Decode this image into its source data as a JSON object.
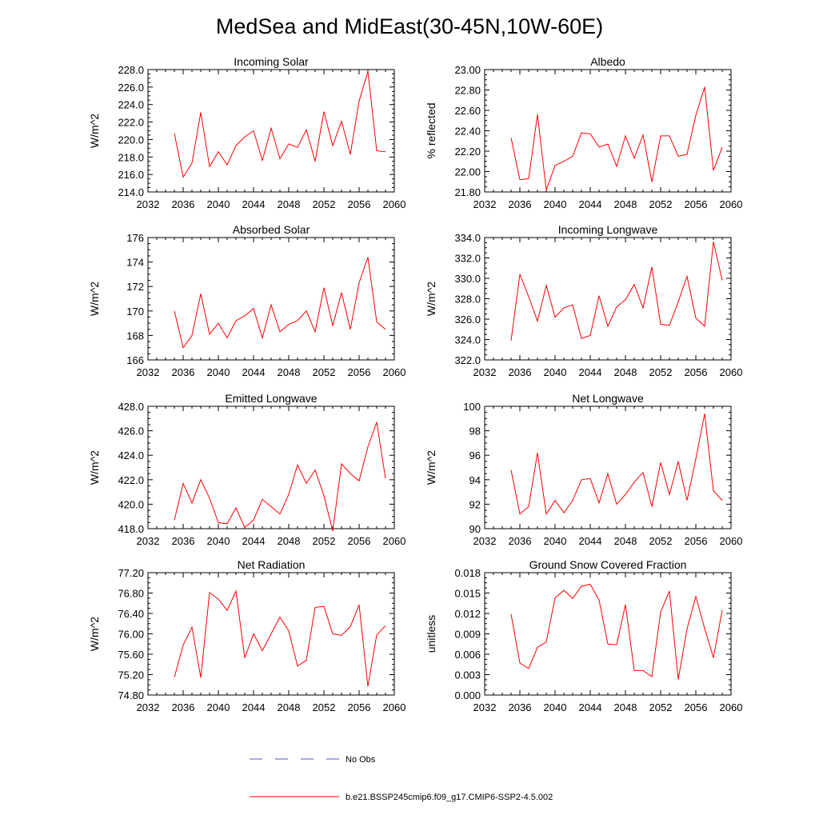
{
  "figure": {
    "title": "MedSea and MidEast(30-45N,10W-60E)",
    "series_color": "#ff0000",
    "obs_color": "#5555cc"
  },
  "legend": {
    "obs_label": "No Obs",
    "model_label": "b.e21.BSSP245cmip6.f09_g17.CMIP6-SSP2-4.5.002"
  },
  "chart_data": [
    {
      "type": "line",
      "title": "Incoming Solar",
      "xlabel": "",
      "ylabel": "W/m^2",
      "xlim": [
        2032,
        2060
      ],
      "ylim": [
        214,
        228
      ],
      "xticks": [
        2032,
        2036,
        2040,
        2044,
        2048,
        2052,
        2056,
        2060
      ],
      "yticks": [
        "214.0",
        "216.0",
        "218.0",
        "220.0",
        "222.0",
        "224.0",
        "226.0",
        "228.0"
      ],
      "x": [
        2035,
        2036,
        2037,
        2038,
        2039,
        2040,
        2041,
        2042,
        2043,
        2044,
        2045,
        2046,
        2047,
        2048,
        2049,
        2050,
        2051,
        2052,
        2053,
        2054,
        2055,
        2056,
        2057,
        2058,
        2059
      ],
      "series": [
        {
          "name": "b.e21.BSSP245cmip6.f09_g17.CMIP6-SSP2-4.5.002",
          "values": [
            220.7,
            215.7,
            217.3,
            223.1,
            216.9,
            218.6,
            217.1,
            219.3,
            220.3,
            221.0,
            217.6,
            221.3,
            217.8,
            219.5,
            219.1,
            221.1,
            217.5,
            223.2,
            219.3,
            222.1,
            218.3,
            224.4,
            227.8,
            218.7,
            218.6
          ]
        }
      ]
    },
    {
      "type": "line",
      "title": "Albedo",
      "xlabel": "",
      "ylabel": "% reflected",
      "xlim": [
        2032,
        2060
      ],
      "ylim": [
        21.8,
        23.0
      ],
      "xticks": [
        2032,
        2036,
        2040,
        2044,
        2048,
        2052,
        2056,
        2060
      ],
      "yticks": [
        "21.80",
        "22.00",
        "22.20",
        "22.40",
        "22.60",
        "22.80",
        "23.00"
      ],
      "x": [
        2035,
        2036,
        2037,
        2038,
        2039,
        2040,
        2041,
        2042,
        2043,
        2044,
        2045,
        2046,
        2047,
        2048,
        2049,
        2050,
        2051,
        2052,
        2053,
        2054,
        2055,
        2056,
        2057,
        2058,
        2059
      ],
      "series": [
        {
          "name": "b.e21.BSSP245cmip6.f09_g17.CMIP6-SSP2-4.5.002",
          "values": [
            22.33,
            21.92,
            21.93,
            22.56,
            21.82,
            22.06,
            22.1,
            22.15,
            22.38,
            22.37,
            22.24,
            22.27,
            22.05,
            22.35,
            22.13,
            22.36,
            21.9,
            22.35,
            22.35,
            22.15,
            22.17,
            22.55,
            22.83,
            22.01,
            22.24
          ]
        }
      ]
    },
    {
      "type": "line",
      "title": "Absorbed Solar",
      "xlabel": "",
      "ylabel": "W/m^2",
      "xlim": [
        2032,
        2060
      ],
      "ylim": [
        166,
        176
      ],
      "xticks": [
        2032,
        2036,
        2040,
        2044,
        2048,
        2052,
        2056,
        2060
      ],
      "yticks": [
        "166",
        "168",
        "170",
        "172",
        "174",
        "176"
      ],
      "x": [
        2035,
        2036,
        2037,
        2038,
        2039,
        2040,
        2041,
        2042,
        2043,
        2044,
        2045,
        2046,
        2047,
        2048,
        2049,
        2050,
        2051,
        2052,
        2053,
        2054,
        2055,
        2056,
        2057,
        2058,
        2059
      ],
      "series": [
        {
          "name": "b.e21.BSSP245cmip6.f09_g17.CMIP6-SSP2-4.5.002",
          "values": [
            170.0,
            167.0,
            168.0,
            171.4,
            168.1,
            169.0,
            167.8,
            169.2,
            169.6,
            170.2,
            167.8,
            170.5,
            168.3,
            168.9,
            169.2,
            170.0,
            168.3,
            171.9,
            168.8,
            171.5,
            168.5,
            172.3,
            174.4,
            169.1,
            168.5
          ]
        }
      ]
    },
    {
      "type": "line",
      "title": "Incoming Longwave",
      "xlabel": "",
      "ylabel": "W/m^2",
      "xlim": [
        2032,
        2060
      ],
      "ylim": [
        322,
        334
      ],
      "xticks": [
        2032,
        2036,
        2040,
        2044,
        2048,
        2052,
        2056,
        2060
      ],
      "yticks": [
        "322.0",
        "324.0",
        "326.0",
        "328.0",
        "330.0",
        "332.0",
        "334.0"
      ],
      "x": [
        2035,
        2036,
        2037,
        2038,
        2039,
        2040,
        2041,
        2042,
        2043,
        2044,
        2045,
        2046,
        2047,
        2048,
        2049,
        2050,
        2051,
        2052,
        2053,
        2054,
        2055,
        2056,
        2057,
        2058,
        2059
      ],
      "series": [
        {
          "name": "b.e21.BSSP245cmip6.f09_g17.CMIP6-SSP2-4.5.002",
          "values": [
            323.9,
            330.4,
            328.2,
            325.8,
            329.3,
            326.2,
            327.1,
            327.4,
            324.1,
            324.4,
            328.3,
            325.3,
            327.2,
            327.9,
            329.4,
            327.1,
            331.1,
            325.5,
            325.4,
            327.7,
            330.2,
            326.1,
            325.3,
            333.6,
            329.8
          ]
        }
      ]
    },
    {
      "type": "line",
      "title": "Emitted Longwave",
      "xlabel": "",
      "ylabel": "W/m^2",
      "xlim": [
        2032,
        2060
      ],
      "ylim": [
        418,
        428
      ],
      "xticks": [
        2032,
        2036,
        2040,
        2044,
        2048,
        2052,
        2056,
        2060
      ],
      "yticks": [
        "418.0",
        "420.0",
        "422.0",
        "424.0",
        "426.0",
        "428.0"
      ],
      "x": [
        2035,
        2036,
        2037,
        2038,
        2039,
        2040,
        2041,
        2042,
        2043,
        2044,
        2045,
        2046,
        2047,
        2048,
        2049,
        2050,
        2051,
        2052,
        2053,
        2054,
        2055,
        2056,
        2057,
        2058,
        2059
      ],
      "series": [
        {
          "name": "b.e21.BSSP245cmip6.f09_g17.CMIP6-SSP2-4.5.002",
          "values": [
            418.7,
            421.7,
            420.1,
            422.0,
            420.5,
            418.5,
            418.4,
            419.7,
            418.1,
            418.7,
            420.4,
            419.8,
            419.2,
            420.8,
            423.2,
            421.7,
            422.8,
            420.7,
            417.8,
            423.3,
            422.5,
            421.9,
            424.7,
            426.7,
            422.1
          ]
        }
      ]
    },
    {
      "type": "line",
      "title": "Net Longwave",
      "xlabel": "",
      "ylabel": "W/m^2",
      "xlim": [
        2032,
        2060
      ],
      "ylim": [
        90,
        100
      ],
      "xticks": [
        2032,
        2036,
        2040,
        2044,
        2048,
        2052,
        2056,
        2060
      ],
      "yticks": [
        "90",
        "92",
        "94",
        "96",
        "98",
        "100"
      ],
      "x": [
        2035,
        2036,
        2037,
        2038,
        2039,
        2040,
        2041,
        2042,
        2043,
        2044,
        2045,
        2046,
        2047,
        2048,
        2049,
        2050,
        2051,
        2052,
        2053,
        2054,
        2055,
        2056,
        2057,
        2058,
        2059
      ],
      "series": [
        {
          "name": "b.e21.BSSP245cmip6.f09_g17.CMIP6-SSP2-4.5.002",
          "values": [
            94.8,
            91.2,
            91.8,
            96.2,
            91.2,
            92.3,
            91.3,
            92.3,
            94.0,
            94.1,
            92.1,
            94.5,
            92.0,
            92.8,
            93.8,
            94.6,
            91.8,
            95.4,
            92.8,
            95.5,
            92.3,
            95.7,
            99.4,
            93.1,
            92.3
          ]
        }
      ]
    },
    {
      "type": "line",
      "title": "Net Radiation",
      "xlabel": "",
      "ylabel": "W/m^2",
      "xlim": [
        2032,
        2060
      ],
      "ylim": [
        74.8,
        77.2
      ],
      "xticks": [
        2032,
        2036,
        2040,
        2044,
        2048,
        2052,
        2056,
        2060
      ],
      "yticks": [
        "74.80",
        "75.20",
        "75.60",
        "76.00",
        "76.40",
        "76.80",
        "77.20"
      ],
      "x": [
        2035,
        2036,
        2037,
        2038,
        2039,
        2040,
        2041,
        2042,
        2043,
        2044,
        2045,
        2046,
        2047,
        2048,
        2049,
        2050,
        2051,
        2052,
        2053,
        2054,
        2055,
        2056,
        2057,
        2058,
        2059
      ],
      "series": [
        {
          "name": "b.e21.BSSP245cmip6.f09_g17.CMIP6-SSP2-4.5.002",
          "values": [
            75.15,
            75.78,
            76.13,
            75.14,
            76.81,
            76.68,
            76.46,
            76.84,
            75.53,
            76.0,
            75.67,
            76.0,
            76.33,
            76.06,
            75.37,
            75.48,
            76.52,
            76.54,
            76.0,
            75.97,
            76.14,
            76.57,
            74.97,
            75.98,
            76.16
          ]
        }
      ]
    },
    {
      "type": "line",
      "title": "Ground Snow Covered Fraction",
      "xlabel": "",
      "ylabel": "unitless",
      "xlim": [
        2032,
        2060
      ],
      "ylim": [
        0.0,
        0.018
      ],
      "xticks": [
        2032,
        2036,
        2040,
        2044,
        2048,
        2052,
        2056,
        2060
      ],
      "yticks": [
        "0.000",
        "0.003",
        "0.006",
        "0.009",
        "0.012",
        "0.015",
        "0.018"
      ],
      "x": [
        2035,
        2036,
        2037,
        2038,
        2039,
        2040,
        2041,
        2042,
        2043,
        2044,
        2045,
        2046,
        2047,
        2048,
        2049,
        2050,
        2051,
        2052,
        2053,
        2054,
        2055,
        2056,
        2057,
        2058,
        2059
      ],
      "series": [
        {
          "name": "b.e21.BSSP245cmip6.f09_g17.CMIP6-SSP2-4.5.002",
          "values": [
            0.0119,
            0.0047,
            0.0039,
            0.007,
            0.0078,
            0.0143,
            0.0154,
            0.0142,
            0.016,
            0.0163,
            0.014,
            0.0075,
            0.0074,
            0.0133,
            0.0036,
            0.0036,
            0.0027,
            0.0122,
            0.0153,
            0.0023,
            0.0097,
            0.0145,
            0.0098,
            0.0055,
            0.0125
          ]
        }
      ]
    }
  ]
}
